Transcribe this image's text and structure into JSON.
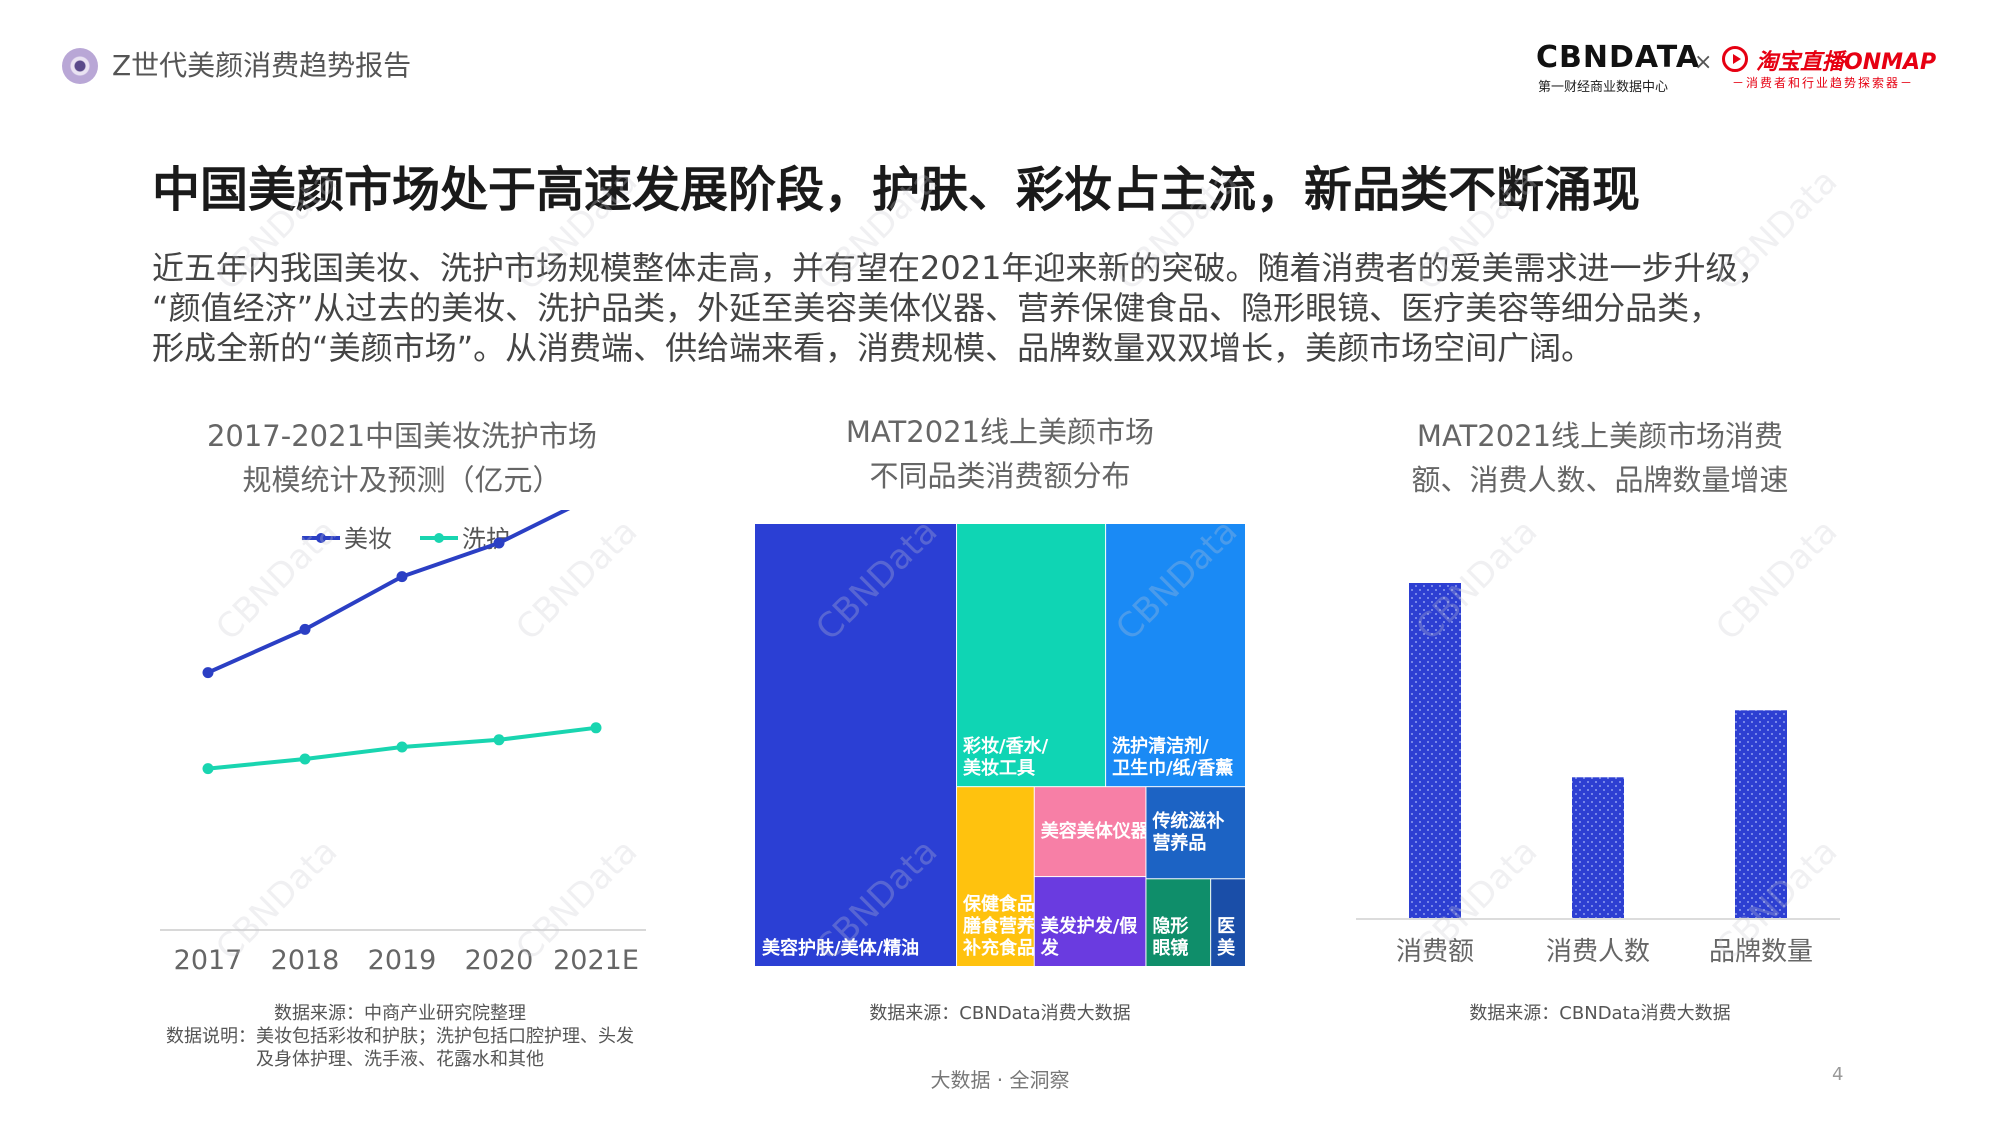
{
  "header": {
    "report_title": "Z世代美颜消费趋势报告",
    "brand_left": "CBNDATA",
    "brand_left_sub": "第一财经商业数据中心",
    "brand_separator": "×",
    "brand_right": "淘宝直播ONMAP",
    "brand_right_sub": "－消费者和行业趋势探索器－"
  },
  "slide": {
    "heading": "中国美颜市场处于高速发展阶段，护肤、彩妆占主流，新品类不断涌现",
    "intro_lines": [
      "近五年内我国美妆、洗护市场规模整体走高，并有望在2021年迎来新的突破。随着消费者的爱美需求进一步升级，",
      "“颜值经济”从过去的美妆、洗护品类，外延至美容美体仪器、营养保健食品、隐形眼镜、医疗美容等细分品类，",
      "形成全新的“美颜市场”。从消费端、供给端来看，消费规模、品牌数量双双增长，美颜市场空间广阔。"
    ]
  },
  "chart_data": [
    {
      "type": "line",
      "title_lines": [
        "2017-2021中国美妆洗护市场",
        "规模统计及预测（亿元）"
      ],
      "x": [
        "2017",
        "2018",
        "2019",
        "2020",
        "2021E"
      ],
      "ylim": [
        0,
        100
      ],
      "series": [
        {
          "name": "美妆",
          "values": [
            53,
            62,
            73,
            80,
            90
          ],
          "color": "#2b3fc4"
        },
        {
          "name": "洗护",
          "values": [
            33,
            35,
            37.5,
            39,
            41.5
          ],
          "color": "#19d5b0"
        }
      ],
      "grid": false,
      "legend": "top",
      "source_lines": [
        "数据来源：中商产业研究院整理",
        "数据说明：美妆包括彩妆和护肤；洗护包括口腔护理、头发",
        "及身体护理、洗手液、花露水和其他"
      ]
    },
    {
      "type": "treemap",
      "title_lines": [
        "MAT2021线上美颜市场",
        "不同品类消费额分布"
      ],
      "items": [
        {
          "label": "美容护肤/美体/精油",
          "color": "#2b3fd4",
          "value": 40.7
        },
        {
          "label": "彩妆/香水/美妆工具",
          "color": "#0fd5b4",
          "value": 17.9
        },
        {
          "label": "洗护清洁剂/卫生巾/纸/香薰",
          "color": "#1a8af5",
          "value": 16.8
        },
        {
          "label": "保健食品/膳食营养补充食品",
          "color": "#ffc20e",
          "value": 6.4
        },
        {
          "label": "美容美体仪器",
          "color": "#f77fa6",
          "value": 4.6
        },
        {
          "label": "美发护发/假发",
          "color": "#6a3be0",
          "value": 4.6
        },
        {
          "label": "传统滋补营养品",
          "color": "#1c63c4",
          "value": 4.2
        },
        {
          "label": "隐形眼镜",
          "color": "#0f8e6a",
          "value": 2.6
        },
        {
          "label": "医美",
          "color": "#1a4ea8",
          "value": 1.4
        }
      ],
      "source_lines": [
        "数据来源：CBNData消费大数据"
      ]
    },
    {
      "type": "bar",
      "title_lines": [
        "MAT2021线上美颜市场消费",
        "额、消费人数、品牌数量增速"
      ],
      "categories": [
        "消费额",
        "消费人数",
        "品牌数量"
      ],
      "values": [
        100,
        42,
        62
      ],
      "ylim": [
        0,
        100
      ],
      "color": "#2d3fd2",
      "grid": false,
      "source_lines": [
        "数据来源：CBNData消费大数据"
      ]
    }
  ],
  "footer": {
    "text": "大数据 · 全洞察",
    "page_number": "4"
  },
  "watermark": "CBNData"
}
